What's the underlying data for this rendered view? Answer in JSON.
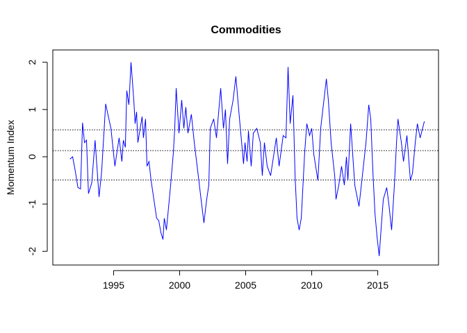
{
  "chart_data": {
    "type": "line",
    "title": "Commodities",
    "y_label": "Momentum Index",
    "xlim": [
      1990.4,
      2019.6
    ],
    "xticks": [
      1995,
      2000,
      2005,
      2010,
      2015
    ],
    "ylim": [
      -2.29,
      2.26
    ],
    "yticks": [
      -2,
      -1,
      0,
      1,
      2
    ],
    "hlines": [
      0.57,
      0.13,
      -0.49
    ],
    "series": [
      {
        "color": "#0000ff",
        "x": [
          1991.7,
          1991.9,
          1992.1,
          1992.3,
          1992.5,
          1992.65,
          1992.8,
          1992.95,
          1993.1,
          1993.35,
          1993.6,
          1993.9,
          1994.1,
          1994.4,
          1994.8,
          1995.1,
          1995.42,
          1995.63,
          1995.74,
          1995.89,
          1996.0,
          1996.16,
          1996.32,
          1996.53,
          1996.63,
          1996.74,
          1996.84,
          1997.16,
          1997.26,
          1997.42,
          1997.53,
          1997.68,
          1997.84,
          1998.05,
          1998.26,
          1998.42,
          1998.58,
          1998.74,
          1998.84,
          1999.0,
          1999.32,
          1999.53,
          1999.63,
          1999.74,
          1999.95,
          2000.16,
          2000.32,
          2000.47,
          2000.63,
          2000.89,
          2001.11,
          2001.37,
          2001.58,
          2001.84,
          2002.05,
          2002.21,
          2002.32,
          2002.58,
          2002.79,
          2003.11,
          2003.32,
          2003.47,
          2003.63,
          2003.79,
          2004.05,
          2004.26,
          2004.47,
          2004.63,
          2004.84,
          2004.95,
          2005.11,
          2005.21,
          2005.42,
          2005.58,
          2005.84,
          2006.11,
          2006.26,
          2006.42,
          2006.63,
          2006.89,
          2007.32,
          2007.53,
          2007.84,
          2008.05,
          2008.21,
          2008.37,
          2008.58,
          2008.74,
          2008.89,
          2009.05,
          2009.21,
          2009.47,
          2009.63,
          2009.84,
          2010.0,
          2010.16,
          2010.47,
          2010.68,
          2011.11,
          2011.26,
          2011.47,
          2011.74,
          2011.84,
          2012.05,
          2012.26,
          2012.47,
          2012.63,
          2012.74,
          2012.95,
          2013.26,
          2013.58,
          2014.11,
          2014.32,
          2014.47,
          2014.63,
          2014.79,
          2014.95,
          2015.11,
          2015.26,
          2015.42,
          2015.68,
          2015.84,
          2016.05,
          2016.26,
          2016.42,
          2016.53,
          2016.79,
          2016.95,
          2017.21,
          2017.47,
          2017.63,
          2017.84,
          2018.0,
          2018.21,
          2018.53
        ],
        "values": [
          -0.05,
          0.0,
          -0.3,
          -0.65,
          -0.68,
          0.72,
          0.3,
          0.35,
          -0.78,
          -0.55,
          0.35,
          -0.85,
          -0.3,
          1.12,
          0.6,
          -0.2,
          0.4,
          -0.1,
          0.35,
          0.2,
          1.4,
          1.1,
          2.0,
          1.2,
          0.7,
          0.95,
          0.3,
          0.85,
          0.4,
          0.8,
          -0.2,
          -0.1,
          -0.5,
          -0.9,
          -1.3,
          -1.35,
          -1.6,
          -1.75,
          -1.3,
          -1.55,
          -0.6,
          0.1,
          0.6,
          1.45,
          0.5,
          1.2,
          0.6,
          1.05,
          0.5,
          0.9,
          0.3,
          -0.3,
          -0.8,
          -1.4,
          -0.9,
          -0.6,
          0.6,
          0.8,
          0.4,
          1.45,
          0.6,
          1.0,
          -0.15,
          0.8,
          1.2,
          1.7,
          1.0,
          0.5,
          -0.15,
          0.3,
          -0.1,
          0.55,
          -0.2,
          0.5,
          0.6,
          0.3,
          -0.4,
          0.3,
          -0.2,
          -0.4,
          0.4,
          -0.2,
          0.45,
          0.4,
          1.9,
          0.7,
          1.3,
          -0.4,
          -1.3,
          -1.55,
          -1.3,
          0.1,
          0.7,
          0.45,
          0.6,
          0.05,
          -0.5,
          0.6,
          1.65,
          1.2,
          0.3,
          -0.4,
          -0.9,
          -0.6,
          -0.2,
          -0.6,
          0.0,
          -0.5,
          0.7,
          -0.6,
          -1.05,
          0.3,
          1.1,
          0.8,
          -0.3,
          -1.2,
          -1.7,
          -2.1,
          -1.5,
          -0.9,
          -0.65,
          -1.0,
          -1.55,
          -0.6,
          0.3,
          0.8,
          0.3,
          -0.1,
          0.45,
          -0.5,
          -0.35,
          0.3,
          0.7,
          0.4,
          0.75
        ]
      }
    ]
  }
}
